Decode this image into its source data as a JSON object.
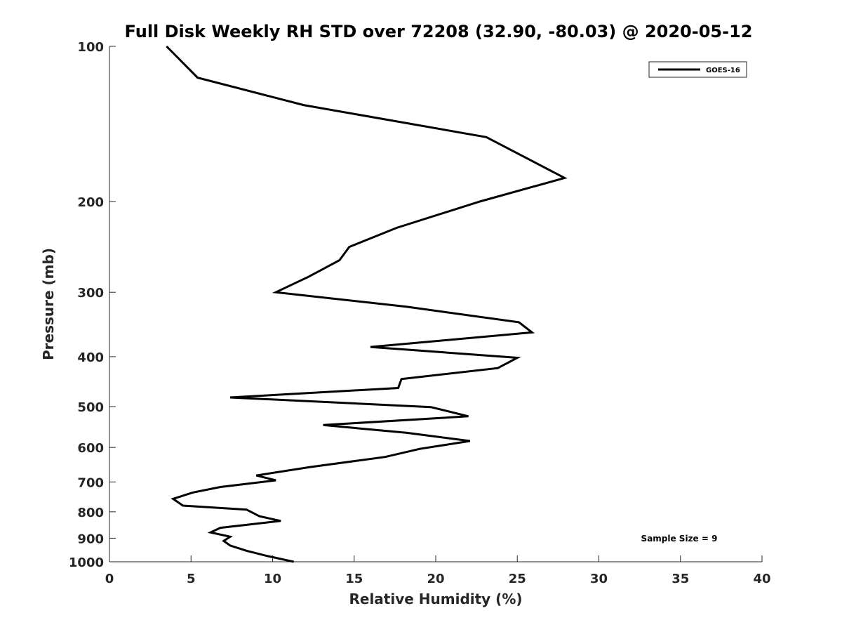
{
  "chart_data": {
    "type": "line",
    "title": "Full Disk Weekly RH STD over 72208 (32.90, -80.03) @ 2020-05-12",
    "xlabel": "Relative Humidity (%)",
    "ylabel": "Pressure (mb)",
    "xlim": [
      0,
      40
    ],
    "ylim": [
      100,
      1000
    ],
    "yscale": "log",
    "yreversed": true,
    "xticks": [
      0,
      5,
      10,
      15,
      20,
      25,
      30,
      35,
      40
    ],
    "xtick_labels": [
      "0",
      "5",
      "10",
      "15",
      "20",
      "25",
      "30",
      "35",
      "40"
    ],
    "yticks": [
      100,
      200,
      300,
      400,
      500,
      600,
      700,
      800,
      900,
      1000
    ],
    "ytick_labels": [
      "100",
      "200",
      "300",
      "400",
      "500",
      "600",
      "700",
      "800",
      "900",
      "1000"
    ],
    "grid": false,
    "legend_position": "top-right",
    "annotation": "Sample Size = 9",
    "series": [
      {
        "name": "GOES-16",
        "color": "#000000",
        "points": [
          [
            3.5,
            100
          ],
          [
            5.4,
            115
          ],
          [
            11.9,
            130
          ],
          [
            23.1,
            150
          ],
          [
            27.9,
            180
          ],
          [
            22.7,
            200
          ],
          [
            17.6,
            225
          ],
          [
            14.7,
            245
          ],
          [
            14.1,
            260
          ],
          [
            12.2,
            280
          ],
          [
            10.2,
            300
          ],
          [
            18.2,
            320
          ],
          [
            25.1,
            343
          ],
          [
            25.9,
            359
          ],
          [
            16.0,
            383
          ],
          [
            25.0,
            402
          ],
          [
            23.8,
            421
          ],
          [
            17.9,
            442
          ],
          [
            17.7,
            460
          ],
          [
            7.4,
            480
          ],
          [
            19.7,
            501
          ],
          [
            22.0,
            522
          ],
          [
            13.1,
            543
          ],
          [
            18.2,
            562
          ],
          [
            22.1,
            583
          ],
          [
            19.0,
            604
          ],
          [
            16.9,
            626
          ],
          [
            12.3,
            655
          ],
          [
            9.0,
            680
          ],
          [
            10.2,
            695
          ],
          [
            6.8,
            716
          ],
          [
            5.1,
            734
          ],
          [
            3.9,
            755
          ],
          [
            4.5,
            778
          ],
          [
            8.4,
            792
          ],
          [
            9.2,
            816
          ],
          [
            10.5,
            833
          ],
          [
            6.8,
            859
          ],
          [
            6.2,
            877
          ],
          [
            7.4,
            894
          ],
          [
            7.0,
            911
          ],
          [
            7.4,
            930
          ],
          [
            8.4,
            952
          ],
          [
            9.7,
            975
          ],
          [
            11.3,
            1000
          ]
        ]
      }
    ]
  }
}
